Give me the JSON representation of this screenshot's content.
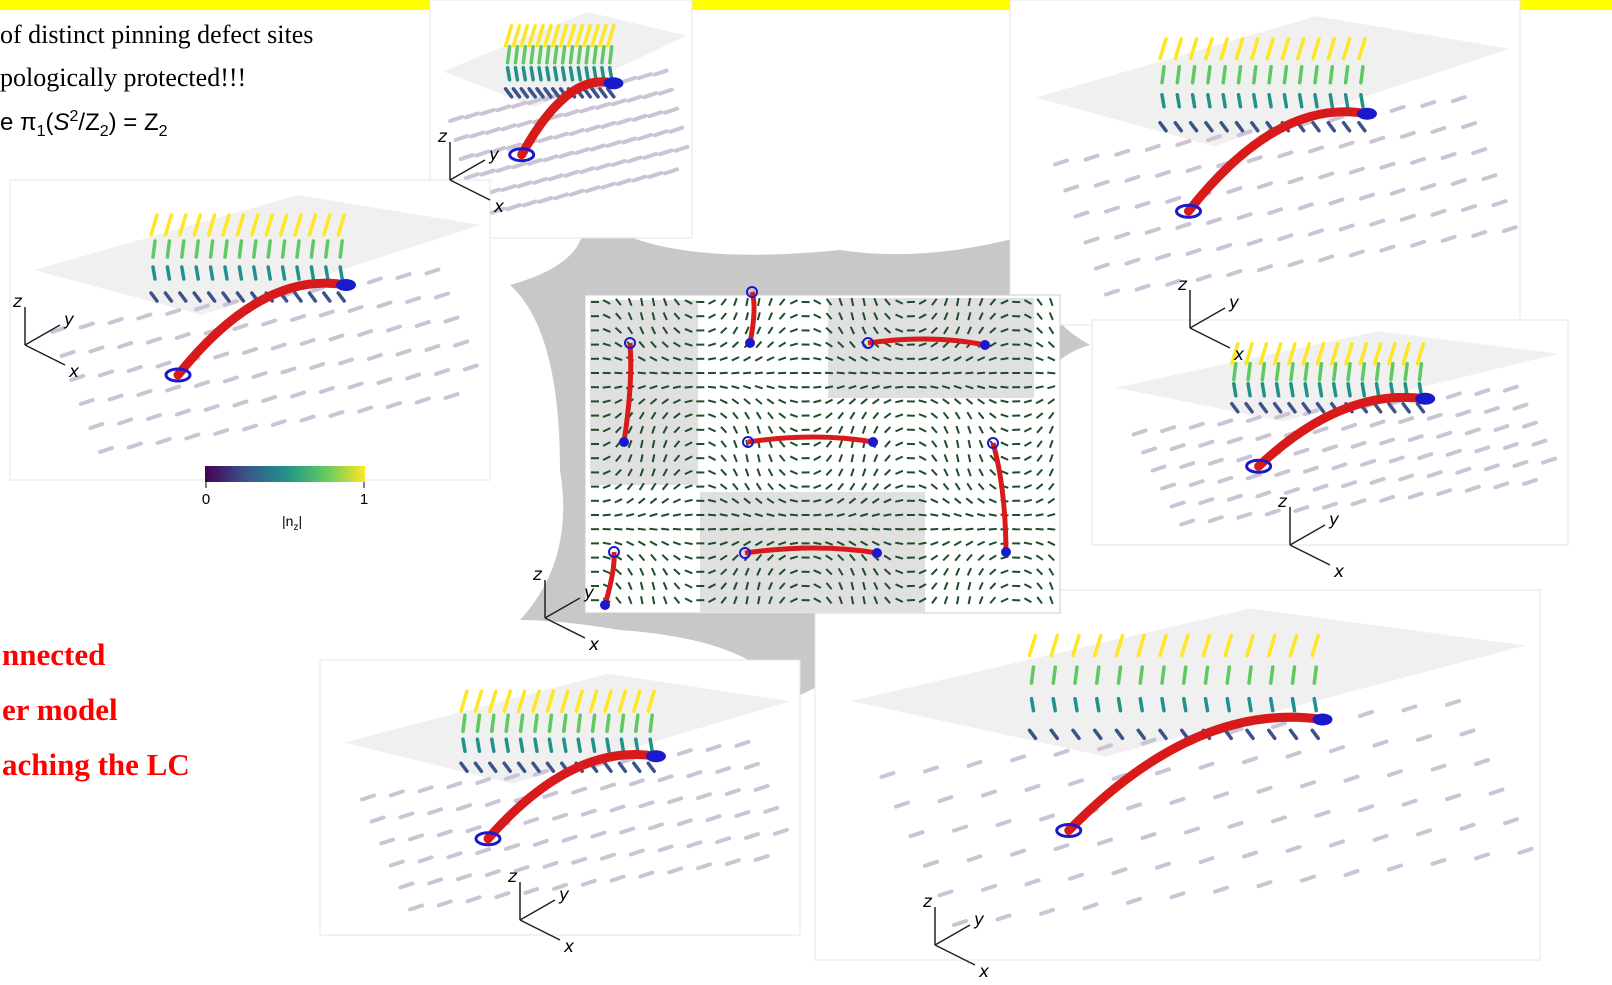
{
  "text": {
    "line1": "of distinct pinning defect sites",
    "line2": "pologically protected!!!",
    "line3": [
      "e π",
      "1",
      "(",
      "S",
      "2",
      "/Z",
      "2",
      ") = Z",
      "2"
    ],
    "red_lines": [
      "nnected",
      "er model",
      "aching the LC"
    ]
  },
  "colorbar": {
    "min": "0",
    "max": "1",
    "label": [
      "|n",
      "z",
      "|"
    ]
  },
  "panels": [
    {
      "axes": [
        "x",
        "y",
        "z"
      ]
    },
    {
      "axes": [
        "x",
        "y",
        "z"
      ]
    },
    {
      "axes": [
        "x",
        "y",
        "z"
      ]
    },
    {
      "axes": [
        "x",
        "y",
        "z"
      ]
    },
    {
      "axes": [
        "x",
        "y",
        "z"
      ]
    },
    {
      "axes": [
        "x",
        "y",
        "z"
      ]
    },
    {
      "axes": [
        "x",
        "y",
        "z"
      ]
    }
  ]
}
